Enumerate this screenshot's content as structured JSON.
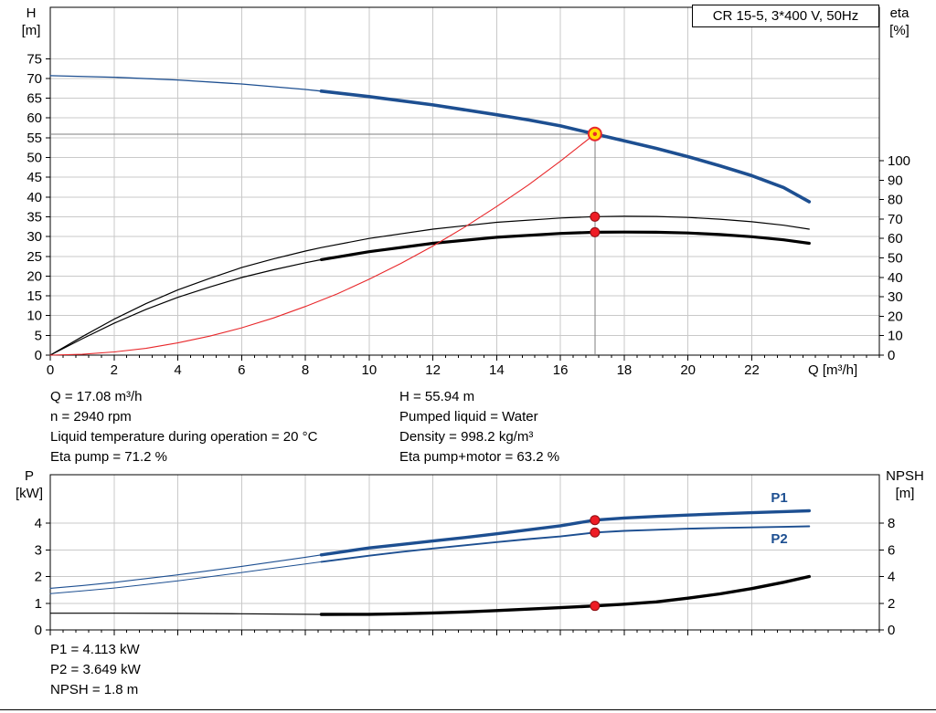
{
  "window": {
    "title_box": "CR 15-5, 3*400 V, 50Hz"
  },
  "colors": {
    "curve_blue": "#1d4f91",
    "curve_red": "#e8282b",
    "curve_black": "#000000",
    "grid": "#c9c9c9",
    "duty_line": "#7f7f7f",
    "duty_fill": "#ffdf00",
    "dot_red": "#ee1c25"
  },
  "top_chart_labels": {
    "y_left_1": "H",
    "y_left_2": "[m]",
    "y_right_1": "eta",
    "y_right_2": "[%]",
    "x": "Q [m³/h]"
  },
  "bottom_chart_labels": {
    "y_left_1": "P",
    "y_left_2": "[kW]",
    "y_right_1": "NPSH",
    "y_right_2": "[m]"
  },
  "info_top": {
    "left": [
      "Q = 17.08 m³/h",
      "n = 2940 rpm",
      "Liquid temperature during operation = 20 °C",
      "Eta pump = 71.2 %"
    ],
    "right": [
      "H = 55.94 m",
      "Pumped liquid = Water",
      "Density = 998.2 kg/m³",
      "Eta pump+motor = 63.2 %"
    ]
  },
  "info_bottom": [
    "P1 = 4.113 kW",
    "P2 = 3.649 kW",
    "NPSH = 1.8 m"
  ],
  "chart_data": [
    {
      "id": "head-efficiency",
      "type": "line",
      "title": "CR 15-5, 3*400 V, 50Hz",
      "xlabel": "Q [m³/h]",
      "ylabel_left": "H [m]",
      "ylabel_right": "eta [%]",
      "xlim": [
        0,
        26
      ],
      "ylim_left": [
        0,
        88
      ],
      "ylim_right": [
        0,
        100
      ],
      "x_ticks": [
        0,
        2,
        4,
        6,
        8,
        10,
        12,
        14,
        16,
        18,
        20,
        22
      ],
      "y_left_ticks": [
        0,
        5,
        10,
        15,
        20,
        25,
        30,
        35,
        40,
        45,
        50,
        55,
        60,
        65,
        70,
        75
      ],
      "y_right_ticks": [
        0,
        10,
        20,
        30,
        40,
        50,
        60,
        70,
        80,
        90,
        100
      ],
      "show_x_labels": true,
      "grid": true,
      "series": [
        {
          "name": "eta-pump",
          "axis": "right",
          "color": "#000000",
          "thin_width": 1.2,
          "thick_width": null,
          "thick_from": null,
          "points": [
            [
              0,
              0
            ],
            [
              1,
              9.5
            ],
            [
              2,
              18.5
            ],
            [
              3,
              26.5
            ],
            [
              4,
              33.5
            ],
            [
              5,
              39.5
            ],
            [
              6,
              45
            ],
            [
              7,
              49.5
            ],
            [
              8,
              53.5
            ],
            [
              8.5,
              55.3
            ],
            [
              10,
              60
            ],
            [
              12,
              64.8
            ],
            [
              14,
              68.3
            ],
            [
              16,
              70.5
            ],
            [
              17.08,
              71.2
            ],
            [
              18,
              71.4
            ],
            [
              19,
              71.3
            ],
            [
              20,
              70.8
            ],
            [
              21,
              69.9
            ],
            [
              22,
              68.6
            ],
            [
              23,
              66.8
            ],
            [
              23.8,
              64.8
            ]
          ]
        },
        {
          "name": "eta-pump-motor",
          "axis": "right",
          "color": "#000000",
          "thin_width": 1.2,
          "thick_width": 3.2,
          "thick_from": 8.5,
          "points": [
            [
              0,
              0
            ],
            [
              1,
              8.4
            ],
            [
              2,
              16.4
            ],
            [
              3,
              23.5
            ],
            [
              4,
              29.7
            ],
            [
              5,
              35
            ],
            [
              6,
              39.9
            ],
            [
              7,
              43.9
            ],
            [
              8,
              47.5
            ],
            [
              8.5,
              49.1
            ],
            [
              10,
              53.2
            ],
            [
              12,
              57.5
            ],
            [
              14,
              60.6
            ],
            [
              16,
              62.6
            ],
            [
              17.08,
              63.2
            ],
            [
              18,
              63.3
            ],
            [
              19,
              63.2
            ],
            [
              20,
              62.8
            ],
            [
              21,
              62
            ],
            [
              22,
              60.9
            ],
            [
              23,
              59.3
            ],
            [
              23.8,
              57.5
            ]
          ]
        },
        {
          "name": "duty-parabola",
          "axis": "left",
          "color": "#e8282b",
          "thin_width": 1.1,
          "thick_width": null,
          "thick_from": null,
          "points": [
            [
              0,
              0
            ],
            [
              1,
              0.2
            ],
            [
              2,
              0.8
            ],
            [
              3,
              1.7
            ],
            [
              4,
              3.1
            ],
            [
              5,
              4.8
            ],
            [
              6,
              6.9
            ],
            [
              7,
              9.4
            ],
            [
              8,
              12.3
            ],
            [
              9,
              15.5
            ],
            [
              10,
              19.2
            ],
            [
              11,
              23.2
            ],
            [
              12,
              27.6
            ],
            [
              13,
              32.4
            ],
            [
              14,
              37.6
            ],
            [
              15,
              43.1
            ],
            [
              16,
              49.1
            ],
            [
              17.08,
              55.94
            ]
          ]
        },
        {
          "name": "h-curve",
          "axis": "left",
          "color": "#1d4f91",
          "thin_width": 1.3,
          "thick_width": 3.6,
          "thick_from": 8.5,
          "points": [
            [
              0,
              70.7
            ],
            [
              2,
              70.3
            ],
            [
              4,
              69.6
            ],
            [
              6,
              68.6
            ],
            [
              8,
              67.2
            ],
            [
              8.5,
              66.8
            ],
            [
              10,
              65.4
            ],
            [
              12,
              63.3
            ],
            [
              14,
              60.8
            ],
            [
              15,
              59.5
            ],
            [
              16,
              58.0
            ],
            [
              17.08,
              55.94
            ],
            [
              18,
              54.2
            ],
            [
              19,
              52.3
            ],
            [
              20,
              50.2
            ],
            [
              21,
              47.9
            ],
            [
              22,
              45.4
            ],
            [
              23,
              42.4
            ],
            [
              23.8,
              38.8
            ]
          ]
        }
      ],
      "duty": {
        "q": 17.08,
        "h": 55.94,
        "eta_pump": 71.2,
        "eta_pump_motor": 63.2,
        "crosshair": {
          "axis": "left",
          "value": 55.94
        },
        "markers": [
          {
            "axis": "right",
            "value": 71.2,
            "style": "dot"
          },
          {
            "axis": "right",
            "value": 63.2,
            "style": "dot"
          },
          {
            "axis": "left",
            "value": 55.94,
            "style": "target"
          }
        ]
      },
      "annotations": []
    },
    {
      "id": "power-npsh",
      "type": "line",
      "title": "",
      "xlabel": "",
      "ylabel_left": "P [kW]",
      "ylabel_right": "NPSH [m]",
      "xlim": [
        0,
        26
      ],
      "ylim_left": [
        0,
        5.8
      ],
      "ylim_right": [
        0,
        11.6
      ],
      "x_ticks": [
        0,
        2,
        4,
        6,
        8,
        10,
        12,
        14,
        16,
        18,
        20,
        22
      ],
      "y_left_ticks": [
        0,
        1,
        2,
        3,
        4
      ],
      "y_right_ticks": [
        0,
        2,
        4,
        6,
        8
      ],
      "show_x_labels": false,
      "grid": true,
      "series": [
        {
          "name": "npsh",
          "axis": "right",
          "color": "#000000",
          "thin_width": 1.2,
          "thick_width": 3.4,
          "thick_from": 8.5,
          "points": [
            [
              0,
              1.25
            ],
            [
              2,
              1.25
            ],
            [
              4,
              1.24
            ],
            [
              6,
              1.21
            ],
            [
              8,
              1.17
            ],
            [
              8.5,
              1.16
            ],
            [
              10,
              1.17
            ],
            [
              11,
              1.21
            ],
            [
              12,
              1.27
            ],
            [
              13,
              1.35
            ],
            [
              14,
              1.45
            ],
            [
              15,
              1.56
            ],
            [
              16,
              1.67
            ],
            [
              17.08,
              1.8
            ],
            [
              18,
              1.93
            ],
            [
              19,
              2.1
            ],
            [
              20,
              2.38
            ],
            [
              21,
              2.7
            ],
            [
              22,
              3.1
            ],
            [
              23,
              3.57
            ],
            [
              23.8,
              4.0
            ]
          ]
        },
        {
          "name": "p2",
          "axis": "left",
          "color": "#1d4f91",
          "thin_width": 1.0,
          "thick_width": 1.9,
          "thick_from": 8.5,
          "points": [
            [
              0,
              1.36
            ],
            [
              1,
              1.46
            ],
            [
              2,
              1.57
            ],
            [
              3,
              1.7
            ],
            [
              4,
              1.84
            ],
            [
              5,
              1.99
            ],
            [
              6,
              2.15
            ],
            [
              7,
              2.31
            ],
            [
              8,
              2.47
            ],
            [
              8.5,
              2.55
            ],
            [
              10,
              2.78
            ],
            [
              11,
              2.92
            ],
            [
              12,
              3.05
            ],
            [
              13,
              3.17
            ],
            [
              14,
              3.29
            ],
            [
              15,
              3.4
            ],
            [
              16,
              3.5
            ],
            [
              17.08,
              3.649
            ],
            [
              18,
              3.71
            ],
            [
              19,
              3.75
            ],
            [
              20,
              3.79
            ],
            [
              21,
              3.82
            ],
            [
              22,
              3.84
            ],
            [
              23,
              3.86
            ],
            [
              23.8,
              3.88
            ]
          ]
        },
        {
          "name": "p1",
          "axis": "left",
          "color": "#1d4f91",
          "thin_width": 1.1,
          "thick_width": 3.4,
          "thick_from": 8.5,
          "points": [
            [
              0,
              1.56
            ],
            [
              1,
              1.66
            ],
            [
              2,
              1.78
            ],
            [
              3,
              1.92
            ],
            [
              4,
              2.06
            ],
            [
              5,
              2.22
            ],
            [
              6,
              2.38
            ],
            [
              7,
              2.55
            ],
            [
              8,
              2.72
            ],
            [
              8.5,
              2.81
            ],
            [
              10,
              3.07
            ],
            [
              11,
              3.2
            ],
            [
              12,
              3.33
            ],
            [
              13,
              3.46
            ],
            [
              14,
              3.6
            ],
            [
              15,
              3.75
            ],
            [
              16,
              3.9
            ],
            [
              17.08,
              4.113
            ],
            [
              18,
              4.19
            ],
            [
              19,
              4.25
            ],
            [
              20,
              4.3
            ],
            [
              21,
              4.35
            ],
            [
              22,
              4.39
            ],
            [
              23,
              4.43
            ],
            [
              23.8,
              4.46
            ]
          ]
        }
      ],
      "duty": {
        "q": 17.08,
        "p1": 4.113,
        "p2": 3.649,
        "npsh": 1.8,
        "crosshair": null,
        "markers": [
          {
            "axis": "left",
            "value": 4.113,
            "style": "dot"
          },
          {
            "axis": "left",
            "value": 3.649,
            "style": "dot"
          },
          {
            "axis": "right",
            "value": 1.8,
            "style": "dot"
          }
        ]
      },
      "annotations": [
        {
          "text": "P1",
          "x": 22.6,
          "y": 4.78,
          "axis": "left",
          "color": "#1d4f91"
        },
        {
          "text": "P2",
          "x": 22.6,
          "y": 3.25,
          "axis": "left",
          "color": "#1d4f91"
        }
      ]
    }
  ]
}
